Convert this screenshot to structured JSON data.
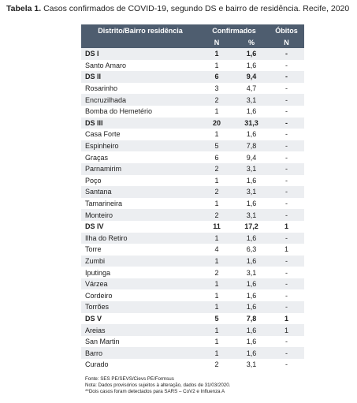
{
  "title": {
    "label": "Tabela 1.",
    "text": "Casos confirmados de COVID-19, segundo DS e bairro de residência. Recife, 2020"
  },
  "table": {
    "header": [
      "Distrito/Bairro residência",
      "Confirmados",
      "Óbitos"
    ],
    "subheader": [
      "N",
      "%",
      "N"
    ],
    "districts": [
      {
        "row": [
          "DS I",
          "1",
          "1,6",
          "-"
        ],
        "bairros": [
          [
            "Santo Amaro",
            "1",
            "1,6",
            "-"
          ]
        ]
      },
      {
        "row": [
          "DS II",
          "6",
          "9,4",
          "-"
        ],
        "bairros": [
          [
            "Rosarinho",
            "3",
            "4,7",
            "-"
          ],
          [
            "Encruzilhada",
            "2",
            "3,1",
            "-"
          ],
          [
            "Bomba do Hemetério",
            "1",
            "1,6",
            "-"
          ]
        ]
      },
      {
        "row": [
          "DS III",
          "20",
          "31,3",
          "-"
        ],
        "bairros": [
          [
            "Casa Forte",
            "1",
            "1,6",
            "-"
          ],
          [
            "Espinheiro",
            "5",
            "7,8",
            "-"
          ],
          [
            "Graças",
            "6",
            "9,4",
            "-"
          ],
          [
            "Parnamirim",
            "2",
            "3,1",
            "-"
          ],
          [
            "Poço",
            "1",
            "1,6",
            "-"
          ],
          [
            "Santana",
            "2",
            "3,1",
            "-"
          ],
          [
            "Tamarineira",
            "1",
            "1,6",
            "-"
          ],
          [
            "Monteiro",
            "2",
            "3,1",
            "-"
          ]
        ]
      },
      {
        "row": [
          "DS IV",
          "11",
          "17,2",
          "1"
        ],
        "bairros": [
          [
            "Ilha do Retiro",
            "1",
            "1,6",
            "-"
          ],
          [
            "Torre",
            "4",
            "6,3",
            "1"
          ],
          [
            "Zumbi",
            "1",
            "1,6",
            "-"
          ],
          [
            "Iputinga",
            "2",
            "3,1",
            "-"
          ],
          [
            "Várzea",
            "1",
            "1,6",
            "-"
          ],
          [
            "Cordeiro",
            "1",
            "1,6",
            "-"
          ],
          [
            "Torrões",
            "1",
            "1,6",
            "-"
          ]
        ]
      },
      {
        "row": [
          "DS V",
          "5",
          "7,8",
          "1"
        ],
        "bairros": [
          [
            "Areias",
            "1",
            "1,6",
            "1"
          ],
          [
            "San Martin",
            "1",
            "1,6",
            "-"
          ],
          [
            "Barro",
            "1",
            "1,6",
            "-"
          ],
          [
            "Curado",
            "2",
            "3,1",
            "-"
          ]
        ]
      }
    ]
  },
  "notes": [
    "Fonte: SES PE/SEVS/Cievs PE/Formsus",
    "Nota: Dados provisórios sujeitos à alteração, dados de 31/03/2020.",
    "**Dois casos foram detectados para SARS – CoV2 e Influenza A"
  ]
}
